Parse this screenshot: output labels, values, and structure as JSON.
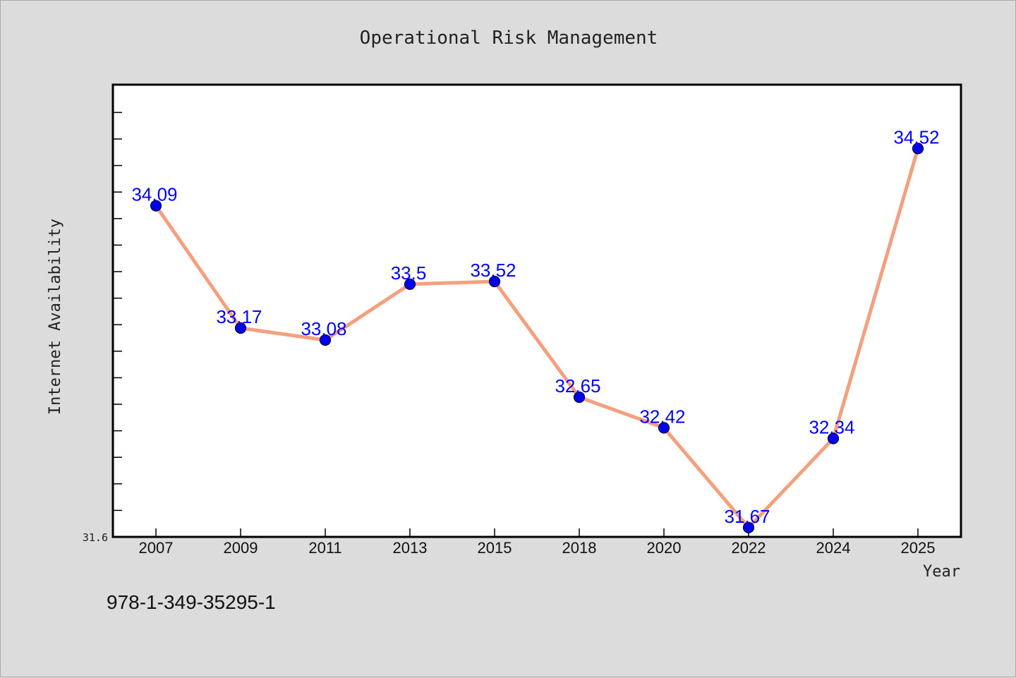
{
  "chart_data": {
    "type": "line",
    "title": "Operational Risk Management",
    "xlabel": "Year",
    "ylabel": "Internet Availability",
    "categories": [
      "2007",
      "2009",
      "2011",
      "2013",
      "2015",
      "2018",
      "2020",
      "2022",
      "2024",
      "2025"
    ],
    "series": [
      {
        "values": [
          34.09,
          33.17,
          33.08,
          33.5,
          33.52,
          32.65,
          32.42,
          31.67,
          32.34,
          34.52
        ],
        "labels": [
          "34.09",
          "33.17",
          "33.08",
          "33.5",
          "33.52",
          "32.65",
          "32.42",
          "31.67",
          "32.34",
          "34.52"
        ],
        "line_color": "#f4a07e",
        "marker_color": "#0000ee"
      }
    ],
    "ylim": [
      31.6,
      35.0
    ],
    "y_tick_labels": [
      "31.6"
    ],
    "grid": false,
    "legend": "none"
  },
  "isbn": "978-1-349-35295-1"
}
